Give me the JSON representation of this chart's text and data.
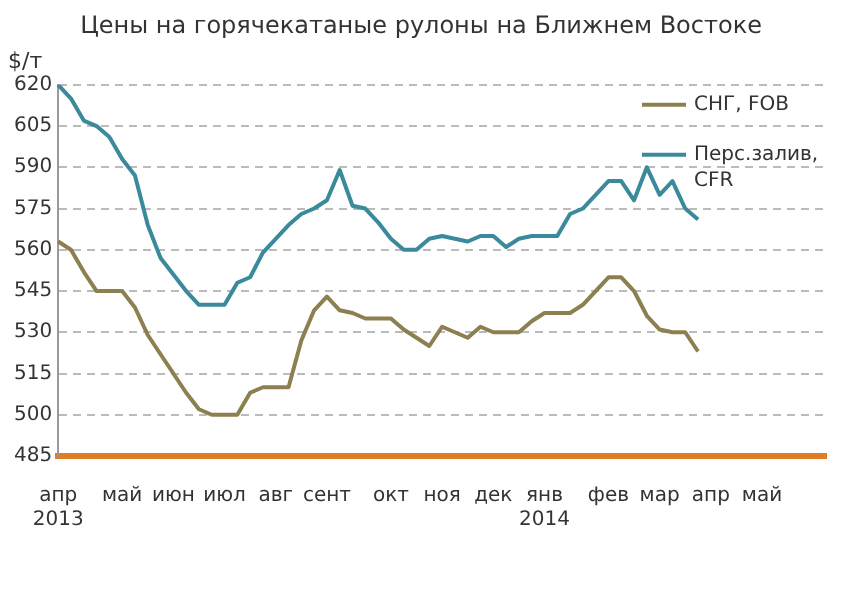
{
  "chart_data": {
    "type": "line",
    "title": "Цены на горячекатаные рулоны на Ближнем Востоке",
    "ylabel": "$/т",
    "categories": [
      "апр\n2013",
      null,
      null,
      null,
      null,
      "май",
      null,
      null,
      null,
      "июн",
      null,
      null,
      null,
      "июл",
      null,
      null,
      null,
      "авг",
      null,
      null,
      null,
      "сент",
      null,
      null,
      null,
      null,
      "окт",
      null,
      null,
      null,
      "ноя",
      null,
      null,
      null,
      "дек",
      null,
      null,
      null,
      "янв\n2014",
      null,
      null,
      null,
      null,
      "фев",
      null,
      null,
      null,
      "мар",
      null,
      null,
      null,
      "апр",
      null,
      null,
      null,
      "май",
      null,
      null,
      null,
      null,
      null
    ],
    "series": [
      {
        "name": "СНГ, FOB",
        "color": "#8c8050",
        "values": [
          563,
          560,
          552,
          545,
          545,
          545,
          539,
          529,
          522,
          515,
          508,
          502,
          500,
          500,
          500,
          508,
          510,
          510,
          510,
          527,
          538,
          543,
          538,
          537,
          535,
          535,
          535,
          531,
          528,
          525,
          532,
          530,
          528,
          532,
          530,
          530,
          530,
          534,
          537,
          537,
          537,
          540,
          545,
          550,
          550,
          545,
          536,
          531,
          530,
          530,
          523,
          null,
          null,
          null,
          null,
          null,
          null,
          null,
          null,
          null,
          null
        ]
      },
      {
        "name": "Перс.залив, CFR",
        "color": "#3a8a9c",
        "values": [
          620,
          615,
          607,
          605,
          601,
          593,
          587,
          569,
          557,
          551,
          545,
          540,
          540,
          540,
          548,
          550,
          559,
          564,
          569,
          573,
          575,
          578,
          589,
          576,
          575,
          570,
          564,
          560,
          560,
          564,
          565,
          564,
          563,
          565,
          565,
          561,
          564,
          565,
          565,
          565,
          573,
          575,
          580,
          585,
          585,
          578,
          590,
          580,
          585,
          575,
          571,
          null,
          null,
          null,
          null,
          null,
          null,
          null,
          null,
          null,
          null
        ]
      }
    ],
    "ylim": [
      485,
      620
    ],
    "yticks": [
      485,
      500,
      515,
      530,
      545,
      560,
      575,
      590,
      605,
      620
    ],
    "grid": "y",
    "legend": "top right",
    "marker": "none",
    "line_style": "solid"
  }
}
